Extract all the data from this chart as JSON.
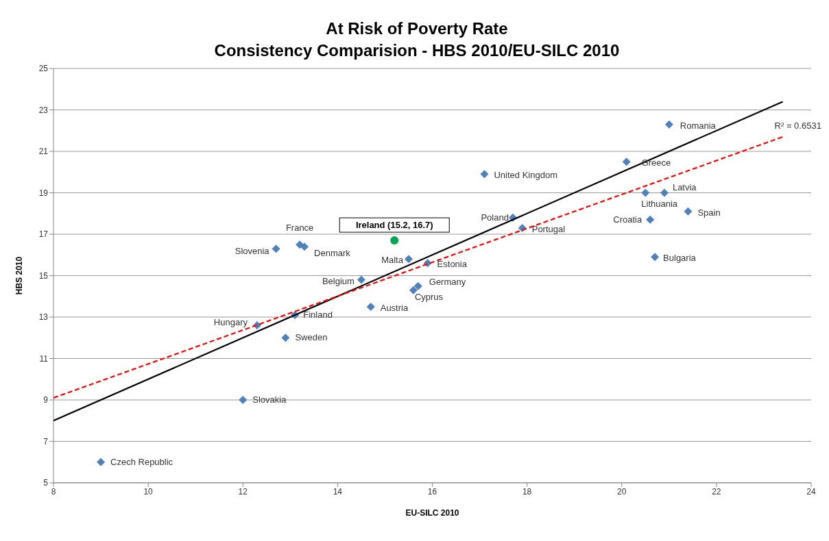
{
  "chart_data": {
    "type": "scatter",
    "title": "At Risk of Poverty Rate",
    "subtitle": "Consistency Comparision - HBS 2010/EU-SILC 2010",
    "xlabel": "EU-SILC 2010",
    "ylabel": "HBS 2010",
    "xlim": [
      8,
      24
    ],
    "xticks": [
      8,
      10,
      12,
      14,
      16,
      18,
      20,
      22,
      24
    ],
    "ylim": [
      5,
      25
    ],
    "yticks": [
      5,
      7,
      9,
      11,
      13,
      15,
      17,
      19,
      21,
      23,
      25
    ],
    "grid": "y",
    "legend": false,
    "series": [
      {
        "type": "scatter",
        "color": "#4f81bd",
        "marker": "diamond",
        "x": [
          9.0,
          12.0,
          12.9,
          12.3,
          13.1,
          12.7,
          13.2,
          13.3,
          14.5,
          14.7,
          15.5,
          15.6,
          15.7,
          15.9,
          17.1,
          17.7,
          17.9,
          20.1,
          20.5,
          20.9,
          21.0,
          21.4,
          20.6,
          20.7
        ],
        "values": [
          6.0,
          9.0,
          12.0,
          12.6,
          13.1,
          16.3,
          16.5,
          16.4,
          14.8,
          13.5,
          15.8,
          14.3,
          14.5,
          15.6,
          19.9,
          17.8,
          17.3,
          20.5,
          19.0,
          19.0,
          22.3,
          18.1,
          17.7,
          15.9
        ]
      },
      {
        "type": "scatter",
        "color": "#00a550",
        "marker": "circle",
        "x": [
          15.2
        ],
        "values": [
          16.7
        ]
      },
      {
        "type": "line",
        "color": "#000000",
        "marker": "none",
        "line_style": "solid",
        "x": [
          8,
          23.4
        ],
        "values": [
          8.0,
          23.4
        ]
      },
      {
        "type": "line",
        "color": "#ff0000",
        "marker": "none",
        "line_style": "dashed",
        "x": [
          8,
          23.4
        ],
        "values": [
          9.1,
          21.7
        ]
      }
    ],
    "annotations": [
      {
        "text": "Czech Republic",
        "x": 9.0,
        "y": 6.0
      },
      {
        "text": "Slovakia",
        "x": 12.0,
        "y": 9.0
      },
      {
        "text": "Sweden",
        "x": 12.9,
        "y": 12.0
      },
      {
        "text": "Hungary",
        "x": 12.3,
        "y": 12.6
      },
      {
        "text": "Finland",
        "x": 13.1,
        "y": 13.1
      },
      {
        "text": "Slovenia",
        "x": 12.7,
        "y": 16.3
      },
      {
        "text": "France",
        "x": 13.2,
        "y": 16.5
      },
      {
        "text": "Denmark",
        "x": 13.3,
        "y": 16.4
      },
      {
        "text": "Belgium",
        "x": 14.5,
        "y": 14.8
      },
      {
        "text": "Austria",
        "x": 14.7,
        "y": 13.5
      },
      {
        "text": "Malta",
        "x": 15.5,
        "y": 15.8
      },
      {
        "text": "Cyprus",
        "x": 15.6,
        "y": 14.3
      },
      {
        "text": "Germany",
        "x": 15.7,
        "y": 14.5
      },
      {
        "text": "Estonia",
        "x": 15.9,
        "y": 15.6
      },
      {
        "text": "United Kingdom",
        "x": 17.1,
        "y": 19.9
      },
      {
        "text": "Poland",
        "x": 17.7,
        "y": 17.8
      },
      {
        "text": "Portugal",
        "x": 17.9,
        "y": 17.3
      },
      {
        "text": "Greece",
        "x": 20.1,
        "y": 20.5
      },
      {
        "text": "Lithuania",
        "x": 20.5,
        "y": 19.0
      },
      {
        "text": "Latvia",
        "x": 20.9,
        "y": 19.0
      },
      {
        "text": "Romania",
        "x": 21.0,
        "y": 22.3
      },
      {
        "text": "Spain",
        "x": 21.4,
        "y": 18.1
      },
      {
        "text": "Croatia",
        "x": 20.6,
        "y": 17.7
      },
      {
        "text": "Bulgaria",
        "x": 20.7,
        "y": 15.9
      },
      {
        "text": "Ireland (15.2, 16.7)",
        "x": 15.2,
        "y": 16.7
      },
      {
        "text": "R² = 0.6531",
        "x": 23.4,
        "y": 21.7
      }
    ]
  }
}
